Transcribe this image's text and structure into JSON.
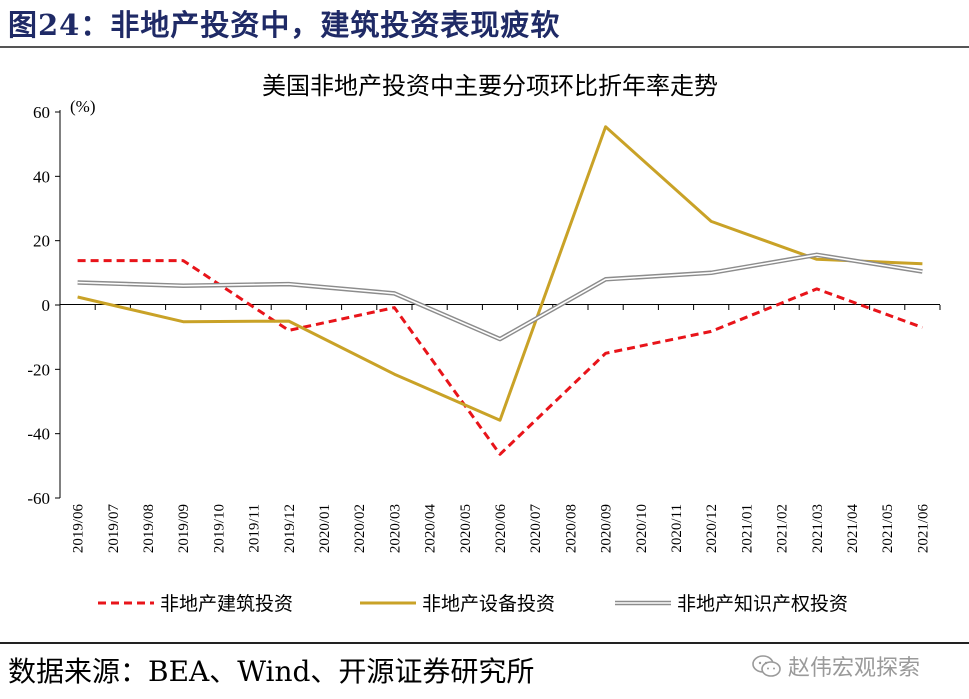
{
  "page": {
    "figure_title": "图24：非地产投资中，建筑投资表现疲软",
    "source": "数据来源：BEA、Wind、开源证券研究所",
    "watermark": "赵伟宏观探索",
    "watermark_icon": "wechat-icon"
  },
  "chart_data": {
    "type": "line",
    "title": "美国非地产投资中主要分项环比折年率走势",
    "unit_label": "(%)",
    "ylim": [
      -60,
      60
    ],
    "yticks": [
      60,
      40,
      20,
      0,
      -20,
      -40,
      -60
    ],
    "grid": false,
    "legend_position": "bottom",
    "categories": [
      "2019/06",
      "2019/07",
      "2019/08",
      "2019/09",
      "2019/10",
      "2019/11",
      "2019/12",
      "2020/01",
      "2020/02",
      "2020/03",
      "2020/04",
      "2020/05",
      "2020/06",
      "2020/07",
      "2020/08",
      "2020/09",
      "2020/10",
      "2020/11",
      "2020/12",
      "2021/01",
      "2021/02",
      "2021/03",
      "2021/04",
      "2021/05",
      "2021/06"
    ],
    "series": [
      {
        "name": "非地产建筑投资",
        "color": "#e8141a",
        "style": "dashed",
        "points": [
          [
            "2019/06",
            13.8
          ],
          [
            "2019/09",
            13.8
          ],
          [
            "2019/12",
            -7.9
          ],
          [
            "2020/03",
            -0.8
          ],
          [
            "2020/06",
            -46.4
          ],
          [
            "2020/09",
            -15.0
          ],
          [
            "2020/12",
            -8.2
          ],
          [
            "2021/03",
            5.0
          ],
          [
            "2021/06",
            -7.0
          ]
        ]
      },
      {
        "name": "非地产设备投资",
        "color": "#c9a227",
        "style": "solid",
        "points": [
          [
            "2019/06",
            2.5
          ],
          [
            "2019/09",
            -5.2
          ],
          [
            "2019/12",
            -5.0
          ],
          [
            "2020/03",
            -21.5
          ],
          [
            "2020/06",
            -35.8
          ],
          [
            "2020/09",
            55.4
          ],
          [
            "2020/12",
            26.0
          ],
          [
            "2021/03",
            14.2
          ],
          [
            "2021/06",
            12.8
          ]
        ]
      },
      {
        "name": "非地产知识产权投资",
        "color": "#8c8c8c",
        "style": "double",
        "points": [
          [
            "2019/06",
            7.0
          ],
          [
            "2019/09",
            6.0
          ],
          [
            "2019/12",
            6.5
          ],
          [
            "2020/03",
            3.6
          ],
          [
            "2020/06",
            -10.6
          ],
          [
            "2020/09",
            8.0
          ],
          [
            "2020/12",
            10.0
          ],
          [
            "2021/03",
            15.6
          ],
          [
            "2021/06",
            10.4
          ]
        ]
      }
    ]
  }
}
